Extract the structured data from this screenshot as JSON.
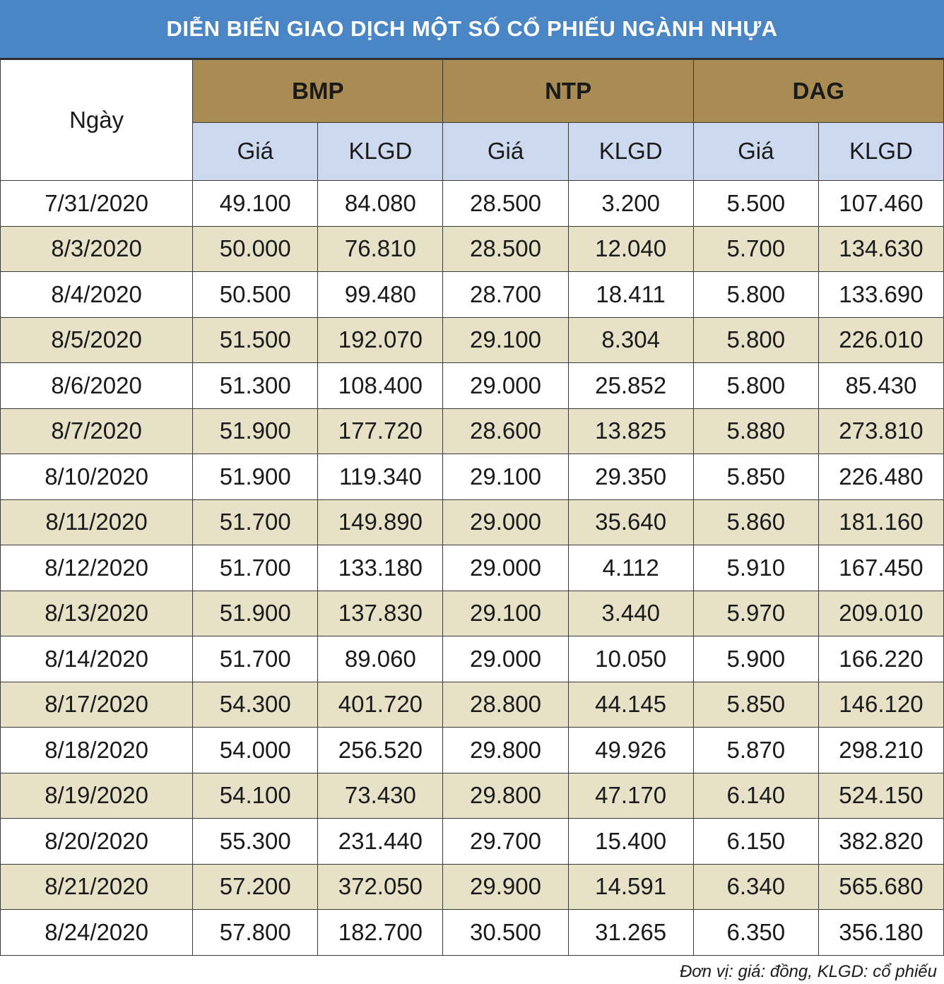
{
  "chart_data": {
    "type": "table",
    "title": "DIỄN BIẾN GIAO DỊCH MỘT SỐ CỔ PHIẾU NGÀNH NHỰA",
    "date_header": "Ngày",
    "groups": [
      "BMP",
      "NTP",
      "DAG"
    ],
    "sub_headers": [
      "Giá",
      "KLGD",
      "Giá",
      "KLGD",
      "Giá",
      "KLGD"
    ],
    "rows": [
      {
        "date": "7/31/2020",
        "values": [
          "49.100",
          "84.080",
          "28.500",
          "3.200",
          "5.500",
          "107.460"
        ]
      },
      {
        "date": "8/3/2020",
        "values": [
          "50.000",
          "76.810",
          "28.500",
          "12.040",
          "5.700",
          "134.630"
        ]
      },
      {
        "date": "8/4/2020",
        "values": [
          "50.500",
          "99.480",
          "28.700",
          "18.411",
          "5.800",
          "133.690"
        ]
      },
      {
        "date": "8/5/2020",
        "values": [
          "51.500",
          "192.070",
          "29.100",
          "8.304",
          "5.800",
          "226.010"
        ]
      },
      {
        "date": "8/6/2020",
        "values": [
          "51.300",
          "108.400",
          "29.000",
          "25.852",
          "5.800",
          "85.430"
        ]
      },
      {
        "date": "8/7/2020",
        "values": [
          "51.900",
          "177.720",
          "28.600",
          "13.825",
          "5.880",
          "273.810"
        ]
      },
      {
        "date": "8/10/2020",
        "values": [
          "51.900",
          "119.340",
          "29.100",
          "29.350",
          "5.850",
          "226.480"
        ]
      },
      {
        "date": "8/11/2020",
        "values": [
          "51.700",
          "149.890",
          "29.000",
          "35.640",
          "5.860",
          "181.160"
        ]
      },
      {
        "date": "8/12/2020",
        "values": [
          "51.700",
          "133.180",
          "29.000",
          "4.112",
          "5.910",
          "167.450"
        ]
      },
      {
        "date": "8/13/2020",
        "values": [
          "51.900",
          "137.830",
          "29.100",
          "3.440",
          "5.970",
          "209.010"
        ]
      },
      {
        "date": "8/14/2020",
        "values": [
          "51.700",
          "89.060",
          "29.000",
          "10.050",
          "5.900",
          "166.220"
        ]
      },
      {
        "date": "8/17/2020",
        "values": [
          "54.300",
          "401.720",
          "28.800",
          "44.145",
          "5.850",
          "146.120"
        ]
      },
      {
        "date": "8/18/2020",
        "values": [
          "54.000",
          "256.520",
          "29.800",
          "49.926",
          "5.870",
          "298.210"
        ]
      },
      {
        "date": "8/19/2020",
        "values": [
          "54.100",
          "73.430",
          "29.800",
          "47.170",
          "6.140",
          "524.150"
        ]
      },
      {
        "date": "8/20/2020",
        "values": [
          "55.300",
          "231.440",
          "29.700",
          "15.400",
          "6.150",
          "382.820"
        ]
      },
      {
        "date": "8/21/2020",
        "values": [
          "57.200",
          "372.050",
          "29.900",
          "14.591",
          "6.340",
          "565.680"
        ]
      },
      {
        "date": "8/24/2020",
        "values": [
          "57.800",
          "182.700",
          "30.500",
          "31.265",
          "6.350",
          "356.180"
        ]
      }
    ],
    "footnote": "Đơn vị: giá: đồng, KLGD: cổ phiếu"
  },
  "colors": {
    "title_bg": "#4a86c5",
    "group_header_bg": "#a98c53",
    "sub_header_bg": "#cdd9ef",
    "stripe_bg": "#e7e1c8"
  }
}
